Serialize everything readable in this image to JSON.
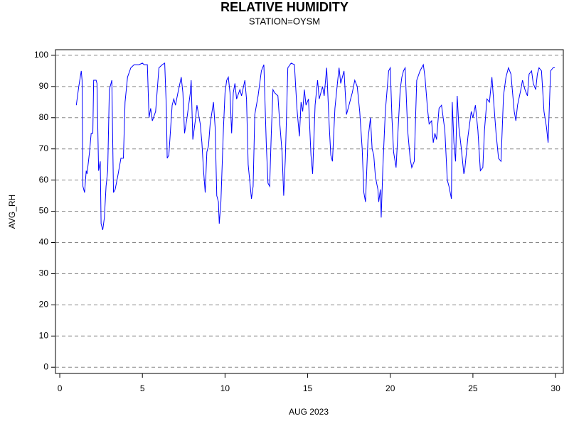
{
  "chart_data": {
    "type": "line",
    "title": "RELATIVE HUMIDITY",
    "subtitle": "STATION=OYSM",
    "x_label": "AUG 2023",
    "y_label": "AVG_RH",
    "xlim": [
      -0.26,
      30.47
    ],
    "ylim": [
      -2,
      101.8
    ],
    "xticks": [
      0,
      5,
      10,
      15,
      20,
      25,
      30
    ],
    "yticks": [
      0,
      10,
      20,
      30,
      40,
      50,
      60,
      70,
      80,
      90,
      100
    ],
    "grid": true,
    "series": [
      {
        "name": "AVG_RH",
        "color": "#0000ff",
        "x": [
          1.0,
          1.15,
          1.3,
          1.35,
          1.4,
          1.5,
          1.6,
          1.65,
          1.8,
          1.9,
          2.0,
          2.05,
          2.2,
          2.25,
          2.35,
          2.45,
          2.5,
          2.6,
          2.7,
          2.8,
          2.9,
          3.0,
          3.1,
          3.15,
          3.25,
          3.35,
          3.5,
          3.7,
          3.85,
          3.95,
          4.1,
          4.3,
          4.5,
          4.8,
          5.0,
          5.1,
          5.3,
          5.4,
          5.5,
          5.6,
          5.8,
          6.0,
          6.2,
          6.35,
          6.45,
          6.5,
          6.6,
          6.8,
          6.9,
          7.0,
          7.15,
          7.35,
          7.45,
          7.55,
          7.7,
          7.8,
          7.9,
          7.95,
          8.05,
          8.2,
          8.3,
          8.5,
          8.6,
          8.7,
          8.8,
          8.9,
          9.0,
          9.1,
          9.3,
          9.4,
          9.5,
          9.6,
          9.65,
          9.75,
          9.9,
          10.0,
          10.1,
          10.2,
          10.3,
          10.4,
          10.5,
          10.6,
          10.7,
          10.9,
          11.0,
          11.2,
          11.3,
          11.4,
          11.6,
          11.7,
          11.8,
          12.0,
          12.2,
          12.35,
          12.5,
          12.6,
          12.7,
          12.8,
          12.9,
          13.0,
          13.2,
          13.3,
          13.45,
          13.55,
          13.65,
          13.8,
          14.0,
          14.2,
          14.35,
          14.5,
          14.6,
          14.7,
          14.8,
          14.9,
          15.05,
          15.2,
          15.3,
          15.45,
          15.6,
          15.7,
          15.9,
          16.0,
          16.15,
          16.3,
          16.4,
          16.5,
          16.65,
          16.8,
          16.9,
          17.0,
          17.2,
          17.35,
          17.45,
          17.6,
          17.7,
          17.85,
          18.0,
          18.15,
          18.3,
          18.4,
          18.5,
          18.65,
          18.8,
          18.9,
          19.0,
          19.1,
          19.25,
          19.3,
          19.4,
          19.45,
          19.55,
          19.7,
          19.9,
          20.0,
          20.1,
          20.2,
          20.35,
          20.5,
          20.6,
          20.7,
          20.8,
          20.9,
          21.05,
          21.2,
          21.3,
          21.45,
          21.6,
          21.8,
          22.0,
          22.1,
          22.25,
          22.35,
          22.5,
          22.6,
          22.7,
          22.8,
          22.95,
          23.1,
          23.3,
          23.45,
          23.55,
          23.7,
          23.75,
          23.85,
          23.95,
          24.05,
          24.15,
          24.3,
          24.45,
          24.5,
          24.7,
          24.9,
          25.0,
          25.15,
          25.3,
          25.45,
          25.6,
          25.7,
          25.85,
          26.0,
          26.15,
          26.3,
          26.4,
          26.55,
          26.7,
          26.85,
          27.0,
          27.15,
          27.3,
          27.5,
          27.6,
          27.7,
          27.9,
          28.0,
          28.15,
          28.3,
          28.4,
          28.55,
          28.65,
          28.8,
          28.9,
          29.0,
          29.15,
          29.3,
          29.45,
          29.55,
          29.7,
          29.85,
          29.95
        ],
        "values": [
          84,
          90,
          95,
          92,
          58,
          56,
          63,
          62,
          69,
          75,
          75,
          92,
          92,
          91,
          63,
          66,
          46,
          44,
          48,
          58,
          63,
          89,
          91,
          92,
          56,
          57,
          61,
          67,
          67,
          85,
          93,
          96,
          97,
          97,
          97.5,
          97,
          97,
          80,
          83,
          79,
          82,
          96,
          97,
          97.5,
          83,
          67,
          68,
          84,
          86,
          84,
          88,
          93,
          88,
          75,
          80,
          84,
          88,
          92,
          73,
          79,
          84,
          78,
          72,
          63,
          56,
          69,
          71,
          78,
          85,
          77,
          55,
          53,
          46,
          53,
          76,
          88,
          92,
          93,
          88,
          75,
          88,
          91,
          86,
          89,
          87,
          92,
          86,
          65,
          54,
          58,
          81,
          87,
          95,
          97,
          71,
          59,
          58,
          75,
          89,
          88,
          87,
          79,
          69,
          55,
          67,
          96,
          97.5,
          97,
          83,
          74,
          85,
          82,
          89,
          84,
          86,
          68,
          62,
          84,
          92,
          86,
          90,
          87,
          96,
          78,
          68,
          66,
          83,
          91,
          96,
          91,
          95,
          81,
          83,
          86,
          88,
          92,
          90,
          82,
          70,
          56,
          53,
          73,
          80,
          70,
          68,
          61,
          57,
          53,
          57,
          48,
          64,
          82,
          95,
          96,
          80,
          69,
          64,
          79,
          89,
          93,
          95,
          96,
          76,
          67,
          64,
          66,
          92,
          95,
          97,
          93,
          83,
          78,
          79,
          72,
          75,
          73,
          83,
          84,
          76,
          60,
          58,
          54,
          85,
          72,
          66,
          87,
          77,
          70,
          62,
          63,
          74,
          82,
          80,
          84,
          76,
          63,
          64,
          76,
          86,
          85,
          93,
          82,
          75,
          67,
          66,
          87,
          93,
          96,
          94,
          82,
          79,
          84,
          89,
          92,
          89,
          87,
          94,
          95,
          91,
          89,
          94,
          96,
          95,
          82,
          77,
          72,
          95,
          96,
          96
        ]
      }
    ]
  }
}
